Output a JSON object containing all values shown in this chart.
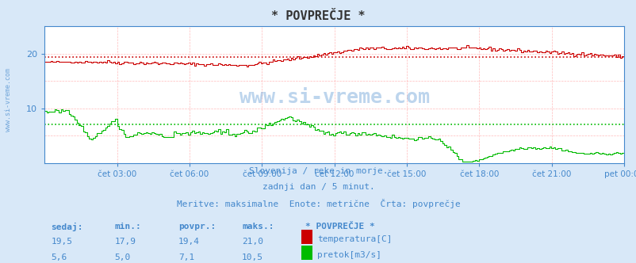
{
  "title": "* POVPREČJE *",
  "bg_color": "#d8e8f8",
  "plot_bg_color": "#ffffff",
  "text_color": "#4488cc",
  "subtitle1": "Slovenija / reke in morje.",
  "subtitle2": "zadnji dan / 5 minut.",
  "subtitle3": "Meritve: maksimalne  Enote: metrične  Črta: povprečje",
  "x_ticks_labels": [
    "čet 03:00",
    "čet 06:00",
    "čet 09:00",
    "čet 12:00",
    "čet 15:00",
    "čet 18:00",
    "čet 21:00",
    "pet 00:00"
  ],
  "x_ticks_positions": [
    0.125,
    0.25,
    0.375,
    0.5,
    0.625,
    0.75,
    0.875,
    1.0
  ],
  "temp_color": "#cc0000",
  "flow_color": "#00bb00",
  "temp_avg_line": 19.4,
  "flow_avg_line": 7.1,
  "watermark": "www.si-vreme.com",
  "table_headers": [
    "sedaj:",
    "min.:",
    "povpr.:",
    "maks.:"
  ],
  "table_temp": [
    "19,5",
    "17,9",
    "19,4",
    "21,0"
  ],
  "table_flow": [
    "5,6",
    "5,0",
    "7,1",
    "10,5"
  ],
  "legend_title": "* POVPREČJE *",
  "legend_temp": "temperatura[C]",
  "legend_flow": "pretok[m3/s]"
}
